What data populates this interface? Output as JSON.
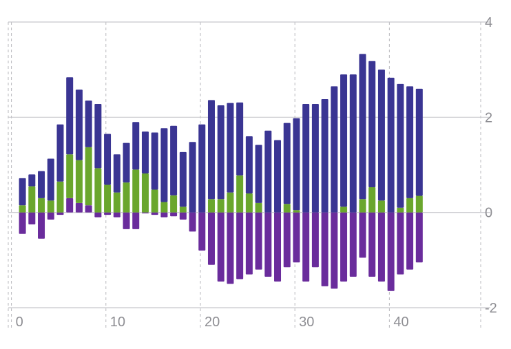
{
  "chart_data": {
    "type": "bar",
    "stacked": true,
    "x": [
      0,
      1,
      2,
      3,
      4,
      5,
      6,
      7,
      8,
      9,
      10,
      11,
      12,
      13,
      14,
      15,
      16,
      17,
      18,
      19,
      20,
      21,
      22,
      23,
      24,
      25,
      26,
      27,
      28,
      29,
      30,
      31,
      32,
      33,
      34,
      35,
      36,
      37,
      38,
      39,
      40,
      41,
      42
    ],
    "series": [
      {
        "color": "#6a2c9c",
        "values": [
          -0.45,
          -0.25,
          -0.55,
          -0.15,
          -0.05,
          0.3,
          0.2,
          0.15,
          -0.1,
          -0.05,
          -0.1,
          -0.35,
          -0.35,
          -0.02,
          -0.05,
          -0.1,
          -0.08,
          -0.15,
          -0.4,
          -0.8,
          -1.1,
          -1.45,
          -1.5,
          -1.4,
          -1.3,
          -1.2,
          -1.35,
          -1.45,
          -1.15,
          -1.05,
          -1.45,
          -1.15,
          -1.55,
          -1.6,
          -1.45,
          -1.35,
          -0.95,
          -1.35,
          -1.45,
          -1.65,
          -1.3,
          -1.2,
          -1.05
        ]
      },
      {
        "color": "#6aa62d",
        "values": [
          0.15,
          0.55,
          0.3,
          0.25,
          0.65,
          0.92,
          0.9,
          1.22,
          0.93,
          0.58,
          0.42,
          0.63,
          0.9,
          0.82,
          0.48,
          0.22,
          0.36,
          0.12,
          0,
          0,
          0.28,
          0.28,
          0.42,
          0.78,
          0.4,
          0.2,
          0,
          0,
          0.18,
          0.05,
          0,
          0,
          0,
          0,
          0.12,
          0,
          0.28,
          0.53,
          0.25,
          0,
          0.1,
          0.3,
          0.35
        ]
      },
      {
        "color": "#3a3593",
        "values": [
          0.57,
          0.25,
          0.57,
          0.88,
          1.2,
          1.62,
          1.48,
          0.98,
          1.35,
          1.07,
          0.8,
          0.83,
          1.0,
          0.88,
          1.2,
          1.55,
          1.46,
          1.15,
          1.48,
          1.85,
          2.08,
          1.97,
          1.88,
          1.53,
          1.2,
          1.22,
          1.72,
          1.52,
          1.7,
          1.93,
          2.28,
          2.28,
          2.38,
          2.65,
          2.78,
          2.9,
          3.05,
          2.65,
          2.75,
          2.83,
          2.6,
          2.35,
          2.25
        ]
      }
    ],
    "xlim": [
      -1.5,
      48.5
    ],
    "ylim": [
      -2,
      4
    ],
    "xticks": [
      0,
      10,
      20,
      30,
      40
    ],
    "xtick_labels": [
      "0",
      "10",
      "20",
      "30",
      "40"
    ],
    "yticks": [
      4,
      2,
      0,
      -2
    ],
    "ytick_labels": [
      "4",
      "2",
      "0",
      "-2"
    ],
    "grid": true,
    "legend": "none",
    "title": "",
    "xlabel": "",
    "ylabel": ""
  }
}
